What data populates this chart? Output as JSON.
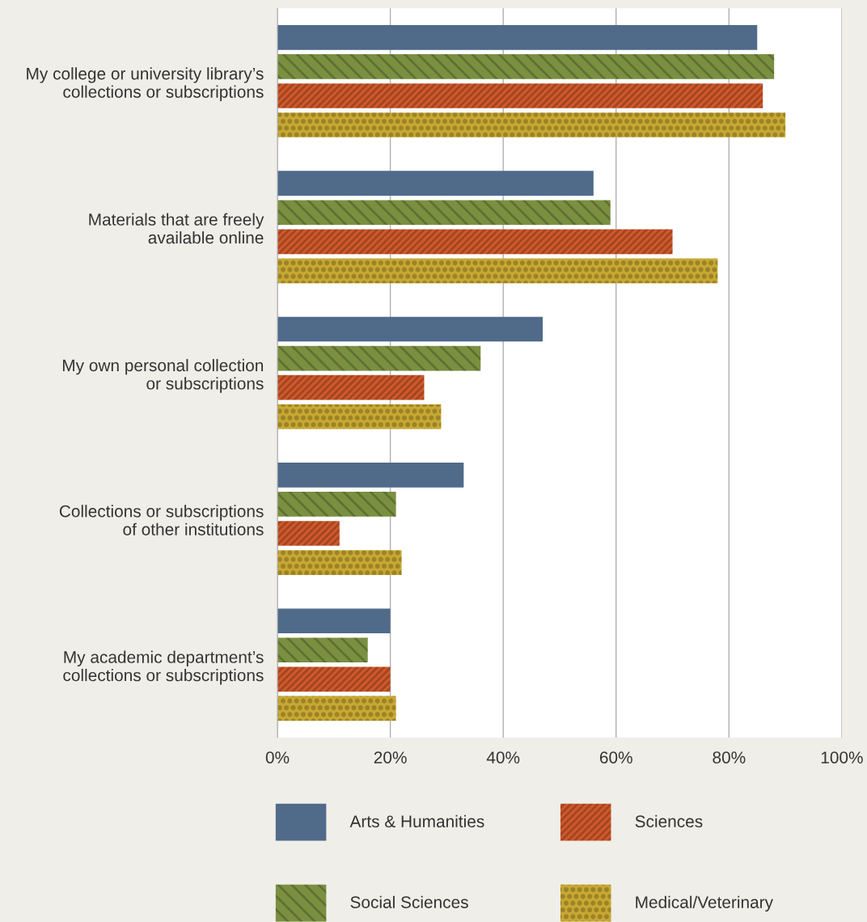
{
  "chart_data": {
    "type": "bar",
    "orientation": "horizontal",
    "categories": [
      "My college or university library’s\ncollections or subscriptions",
      "Materials that are freely\navailable online",
      "My own personal collection\nor subscriptions",
      "Collections or subscriptions\nof other institutions",
      "My academic department’s\ncollections or subscriptions"
    ],
    "series": [
      {
        "name": "Arts & Humanities",
        "color": "#506a8a",
        "values": [
          85,
          56,
          47,
          33,
          20
        ]
      },
      {
        "name": "Social Sciences",
        "color": "#7a9040",
        "values": [
          88,
          59,
          36,
          21,
          16
        ]
      },
      {
        "name": "Sciences",
        "color": "#d0582a",
        "values": [
          86,
          70,
          26,
          11,
          20
        ]
      },
      {
        "name": "Medical/Veterinary",
        "color": "#c8a832",
        "values": [
          90,
          78,
          29,
          22,
          21
        ]
      }
    ],
    "xlim": [
      0,
      100
    ],
    "xticks": [
      {
        "value": 0,
        "label": "0%"
      },
      {
        "value": 20,
        "label": "20%"
      },
      {
        "value": 40,
        "label": "40%"
      },
      {
        "value": 60,
        "label": "60%"
      },
      {
        "value": 80,
        "label": "80%"
      },
      {
        "value": 100,
        "label": "100%"
      }
    ],
    "grid": "x",
    "legend": "bottom"
  }
}
